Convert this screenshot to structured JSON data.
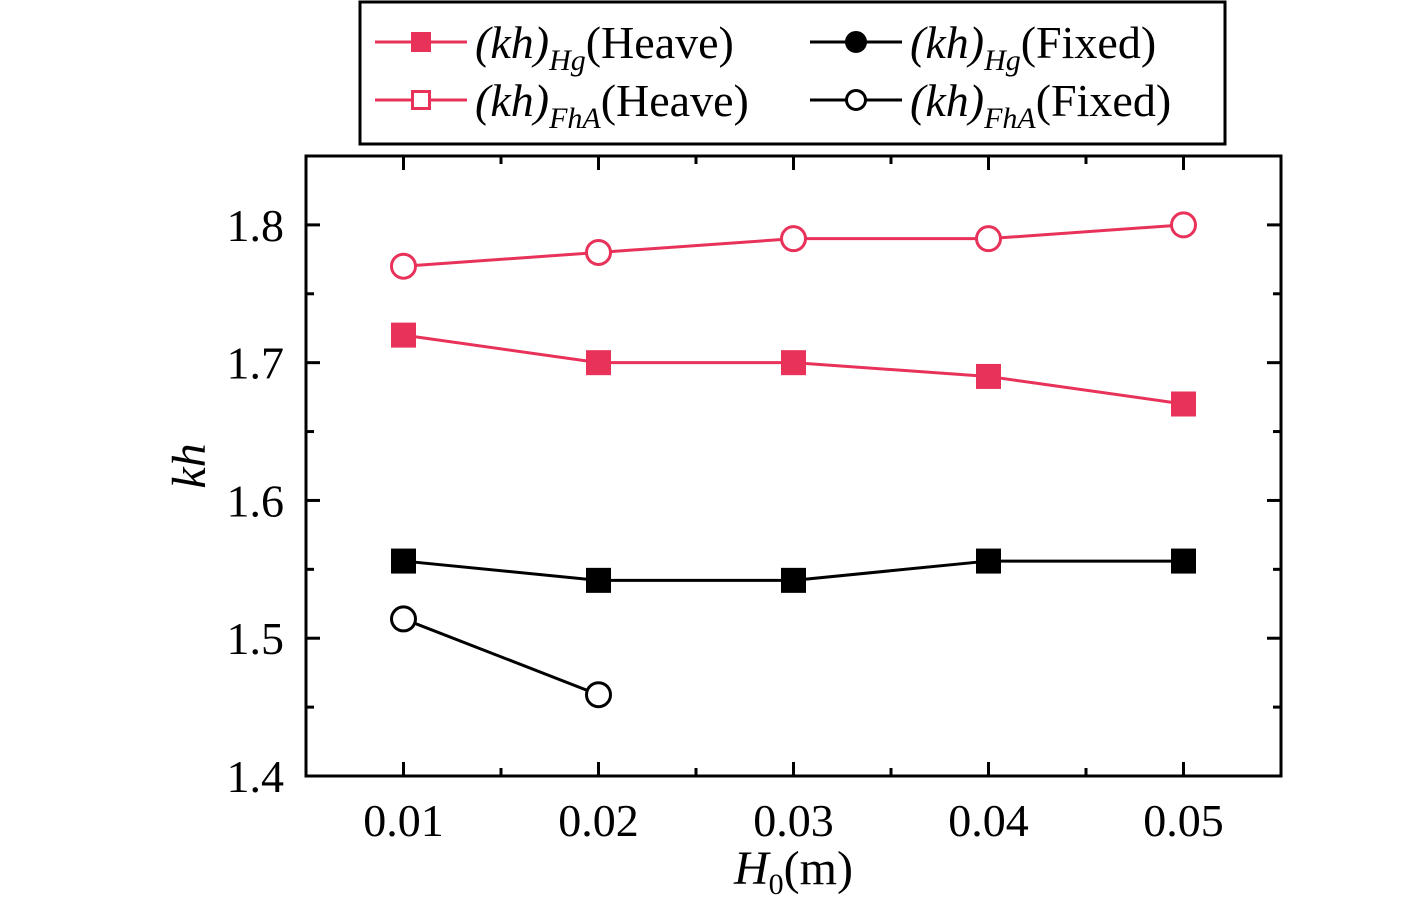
{
  "chart_data": {
    "type": "line",
    "xlabel": {
      "main": "H",
      "sub": "0",
      "unit": "(m)"
    },
    "ylabel": "kh",
    "x": [
      0.01,
      0.02,
      0.03,
      0.04,
      0.05
    ],
    "x_tick_labels": [
      "0.01",
      "0.02",
      "0.03",
      "0.04",
      "0.05"
    ],
    "y_tick_labels": [
      "1.4",
      "1.5",
      "1.6",
      "1.7",
      "1.8"
    ],
    "xlim": [
      0.005,
      0.055
    ],
    "ylim": [
      1.4,
      1.85
    ],
    "grid": false,
    "legend_placement": "top, above plot",
    "series": [
      {
        "key": "hg_heave",
        "name": "(kh)Hg(Heave)",
        "name_main": "(kh)",
        "name_sub": "Hg",
        "name_suffix": "(Heave)",
        "color": "#e8325a",
        "marker": "square",
        "filled": true,
        "values": [
          1.72,
          1.7,
          1.7,
          1.69,
          1.67
        ]
      },
      {
        "key": "fha_heave",
        "name": "(kh)FhA(Heave)",
        "name_main": "(kh)",
        "name_sub": "FhA",
        "name_suffix": "(Heave)",
        "color": "#e8325a",
        "marker": "circle",
        "legend_marker": "square",
        "filled": false,
        "values": [
          1.77,
          1.78,
          1.79,
          1.79,
          1.8
        ]
      },
      {
        "key": "hg_fixed",
        "name": "(kh)Hg(Fixed)",
        "name_main": "(kh)",
        "name_sub": "Hg",
        "name_suffix": "(Fixed)",
        "color": "#000000",
        "marker": "square",
        "legend_marker": "circle",
        "filled": true,
        "values": [
          1.556,
          1.542,
          1.542,
          1.556,
          1.556
        ]
      },
      {
        "key": "fha_fixed",
        "name": "(kh)FhA(Fixed)",
        "name_main": "(kh)",
        "name_sub": "FhA",
        "name_suffix": "(Fixed)",
        "color": "#000000",
        "marker": "circle",
        "filled": false,
        "values": [
          1.514,
          1.459,
          null,
          null,
          null
        ]
      }
    ]
  }
}
